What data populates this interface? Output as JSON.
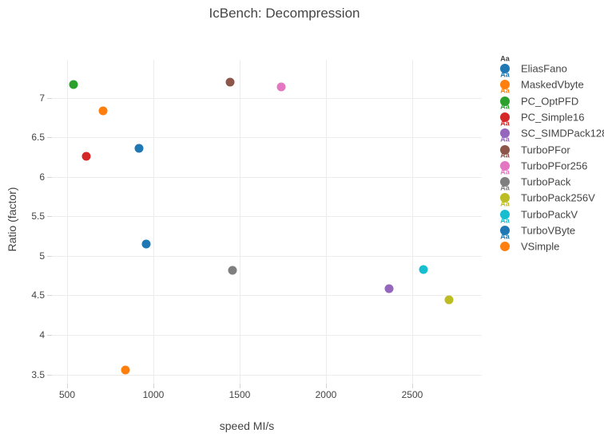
{
  "title": "IcBench: Decompression",
  "chart_data": {
    "type": "scatter",
    "title": "IcBench: Decompression",
    "xlabel": "speed MI/s",
    "ylabel": "Ratio (factor)",
    "xlim": [
      412,
      2903
    ],
    "ylim": [
      3.385,
      7.48
    ],
    "x_ticks": [
      500,
      1000,
      1500,
      2000,
      2500
    ],
    "y_ticks": [
      3.5,
      4,
      4.5,
      5,
      5.5,
      6,
      6.5,
      7
    ],
    "grid": true,
    "legend_position": "right",
    "legend_sample_text": "Aa",
    "legend_sample_default_color": "#444444",
    "series": [
      {
        "name": "EliasFano",
        "color": "#1f77b4",
        "x": 915,
        "y": 6.36
      },
      {
        "name": "MaskedVbyte",
        "color": "#ff7f0e",
        "x": 708,
        "y": 6.83
      },
      {
        "name": "PC_OptPFD",
        "color": "#2ca02c",
        "x": 536,
        "y": 7.17
      },
      {
        "name": "PC_Simple16",
        "color": "#d62728",
        "x": 610,
        "y": 6.26
      },
      {
        "name": "SC_SIMDPack128",
        "color": "#9467bd",
        "x": 2367,
        "y": 4.59
      },
      {
        "name": "TurboPFor",
        "color": "#8c564b",
        "x": 1446,
        "y": 7.2
      },
      {
        "name": "TurboPFor256",
        "color": "#e377c2",
        "x": 1739,
        "y": 7.14
      },
      {
        "name": "TurboPack",
        "color": "#7f7f7f",
        "x": 1460,
        "y": 4.82
      },
      {
        "name": "TurboPack256V",
        "color": "#bcbd22",
        "x": 2712,
        "y": 4.44
      },
      {
        "name": "TurboPackV",
        "color": "#17becf",
        "x": 2566,
        "y": 4.83
      },
      {
        "name": "TurboVByte",
        "color": "#1f77b4",
        "x": 960,
        "y": 5.15
      },
      {
        "name": "VSimple",
        "color": "#ff7f0e",
        "x": 840,
        "y": 3.56
      }
    ]
  },
  "colors": {
    "text": "#444444",
    "grid": "#ececec",
    "tick": "#d4d4d4",
    "background": "#ffffff"
  }
}
